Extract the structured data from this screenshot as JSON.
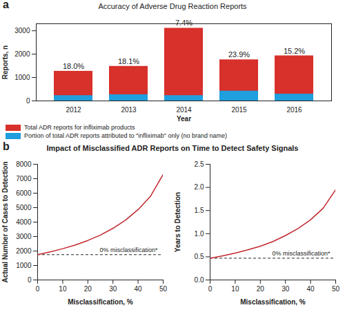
{
  "chart_data": [
    {
      "type": "bar",
      "panel": "a",
      "title": "Accuracy of Adverse Drug Reaction Reports",
      "xlabel": "Year",
      "ylabel": "Reports, n",
      "categories": [
        "2012",
        "2013",
        "2014",
        "2015",
        "2016"
      ],
      "series": [
        {
          "name": "Total ADR reports for infliximab products",
          "color": "#d8302a",
          "values": [
            1270,
            1480,
            3110,
            1760,
            1930
          ]
        },
        {
          "name": "Portion of total ADR reports attributed to \"infliximab\" only (no brand name)",
          "color": "#1f9fde",
          "values": [
            229,
            268,
            230,
            421,
            293
          ]
        }
      ],
      "annotations": [
        {
          "category": "2012",
          "text": "18.0%"
        },
        {
          "category": "2013",
          "text": "18.1%"
        },
        {
          "category": "2014",
          "text": "7.4%"
        },
        {
          "category": "2015",
          "text": "23.9%"
        },
        {
          "category": "2016",
          "text": "15.2%"
        }
      ],
      "stacked": false,
      "ylim": [
        0,
        3300
      ],
      "yticks": [
        0,
        1000,
        2000,
        3000
      ],
      "legend": "bottom",
      "grid": false
    },
    {
      "type": "line",
      "panel": "b",
      "title": "Impact of Misclassified ADR Reports on Time to Detect Safety Signals",
      "xlabel": "Misclassification, %",
      "ylabel": "Actual Number of Cases to Detection",
      "x": [
        0,
        5,
        10,
        15,
        20,
        25,
        30,
        35,
        40,
        45,
        50
      ],
      "values": [
        1750,
        1940,
        2160,
        2420,
        2730,
        3100,
        3570,
        4140,
        4860,
        5800,
        7300
      ],
      "color": "#c1272d",
      "reference_line": {
        "value": 1750,
        "label": "0% misclassification*"
      },
      "xlim": [
        0,
        50
      ],
      "xticks": [
        0,
        10,
        20,
        30,
        40,
        50
      ],
      "ylim": [
        0,
        8000
      ],
      "yticks": [
        0,
        1000,
        2000,
        3000,
        4000,
        5000,
        6000,
        7000,
        8000
      ],
      "grid": false
    },
    {
      "type": "line",
      "xlabel": "Misclassification, %",
      "ylabel": "Years to Detection",
      "x": [
        0,
        5,
        10,
        15,
        20,
        25,
        30,
        35,
        40,
        45,
        50
      ],
      "values": [
        0.47,
        0.52,
        0.58,
        0.65,
        0.73,
        0.83,
        0.96,
        1.11,
        1.3,
        1.55,
        1.95
      ],
      "color": "#c1272d",
      "reference_line": {
        "value": 0.47,
        "label": "0% misclassification*"
      },
      "xlim": [
        0,
        50
      ],
      "xticks": [
        0,
        10,
        20,
        30,
        40,
        50
      ],
      "ylim": [
        0,
        2.5
      ],
      "yticks": [
        {
          "value": 0,
          "label": "0.0"
        },
        0.5,
        {
          "value": 1,
          "label": "1.0"
        },
        1.5,
        {
          "value": 2,
          "label": "2.0"
        },
        2.5
      ],
      "grid": false
    }
  ]
}
